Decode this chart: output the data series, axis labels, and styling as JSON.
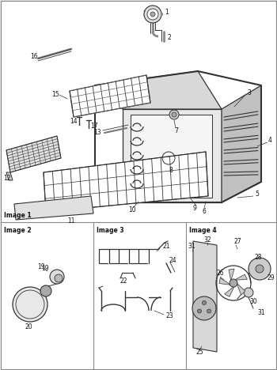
{
  "bg_color": "#f2f0ed",
  "line_color": "#333333",
  "text_color": "#111111",
  "image1_label": "Image 1",
  "image2_label": "Image 2",
  "image3_label": "Image 3",
  "image4_label": "Image 4"
}
